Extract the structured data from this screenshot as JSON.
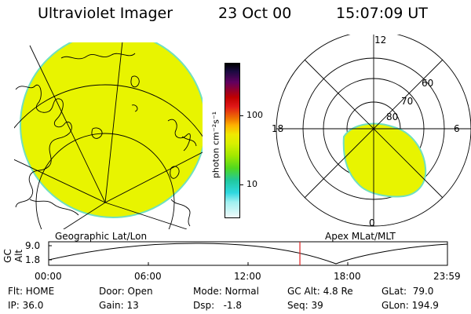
{
  "header": {
    "instrument": "Ultraviolet Imager",
    "date": "23 Oct 00",
    "time": "15:07:09 UT"
  },
  "colors": {
    "aurora_fill": "#e8f400",
    "aurora_edge": "#6fe0c0",
    "time_marker": "#e02020"
  },
  "geo_panel": {
    "label": "Geographic Lat/Lon"
  },
  "colorbar": {
    "unit_label": "photon cm⁻²s⁻¹",
    "tick_100": "100",
    "tick_10": "10",
    "scale": "log"
  },
  "polar_panel": {
    "label": "Apex MLat/MLT",
    "mlt_top": "12",
    "mlt_left": "18",
    "mlt_right": "6",
    "mlt_bottom": "0",
    "lat_60": "60",
    "lat_70": "70",
    "lat_80": "80"
  },
  "timeline": {
    "ylabel": "GC Alt",
    "ytick_top": "9.0",
    "ytick_bottom": "1.8",
    "xticks": [
      "00:00",
      "06:00",
      "12:00",
      "18:00",
      "23:59"
    ],
    "marker_time_hours": 15.12
  },
  "info": {
    "flt": "Flt: HOME",
    "ip": "IP: 36.0",
    "door": "Door: Open",
    "gain": "Gain: 13",
    "mode": "Mode: Normal",
    "dsp": "Dsp:   -1.8",
    "gcalt": "GC Alt: 4.8 Re",
    "seq": "Seq: 39",
    "glat": "GLat:  79.0",
    "glon": "GLon: 194.9"
  }
}
